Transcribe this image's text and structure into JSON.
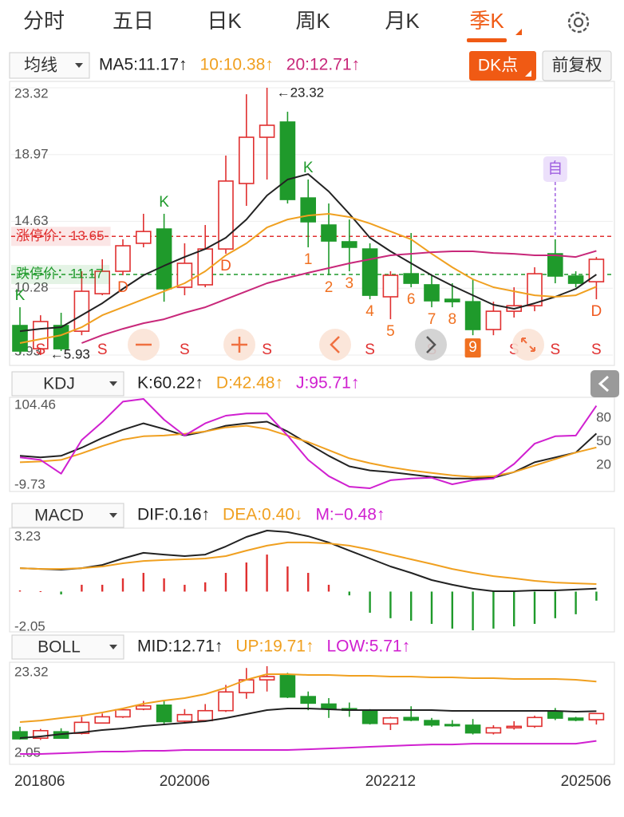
{
  "tabs": [
    "分时",
    "五日",
    "日K",
    "周K",
    "月K",
    "季K"
  ],
  "active_tab": 5,
  "toolbar": {
    "dk_button": "DK点",
    "adjust_button": "前复权"
  },
  "chart_data": [
    {
      "type": "candlestick",
      "selector": "均线",
      "legend": [
        {
          "text": "MA5:11.17↑",
          "color": "#222222"
        },
        {
          "text": "10:10.38↑",
          "color": "#f0a020"
        },
        {
          "text": "20:12.71↑",
          "color": "#c8287a"
        }
      ],
      "open": [
        7.85,
        6.34,
        7.85,
        7.48,
        9.92,
        11.38,
        13.2,
        14.13,
        10.34,
        10.5,
        12.83,
        17.09,
        20.1,
        21.09,
        16.15,
        14.39,
        13.3,
        12.83,
        9.72,
        11.22,
        10.5,
        9.56,
        9.4,
        7.59,
        8.78,
        9.14,
        12.52,
        11.07,
        10.7
      ],
      "high": [
        9.04,
        8.52,
        8.68,
        11.38,
        12.16,
        13.46,
        15.12,
        15.12,
        13.2,
        14.39,
        18.91,
        22.9,
        23.32,
        21.76,
        17.35,
        15.79,
        14.75,
        13.2,
        11.38,
        13.87,
        11.12,
        10.6,
        10.86,
        9.4,
        10.34,
        11.64,
        13.46,
        11.38,
        12.31
      ],
      "low": [
        6.0,
        5.93,
        6.19,
        7.22,
        9.82,
        11.12,
        12.94,
        9.4,
        9.82,
        10.34,
        12.52,
        15.64,
        17.35,
        15.79,
        12.94,
        11.12,
        11.38,
        9.56,
        8.26,
        10.34,
        9.04,
        9.04,
        7.22,
        7.22,
        8.37,
        8.78,
        10.6,
        10.34,
        9.56
      ],
      "close": [
        6.19,
        8.11,
        6.34,
        10.08,
        11.38,
        13.04,
        13.97,
        10.24,
        11.9,
        12.83,
        17.25,
        20.1,
        20.88,
        16.05,
        14.6,
        13.35,
        12.94,
        9.82,
        11.12,
        10.6,
        9.46,
        9.4,
        7.59,
        8.78,
        9.14,
        11.22,
        11.07,
        10.6,
        12.16
      ],
      "up_color": "#e03030",
      "down_color": "#1f9a2b",
      "series": [
        {
          "color": "#222222",
          "values": [
            7.48,
            7.64,
            7.74,
            8.52,
            9.3,
            10.24,
            11.12,
            11.74,
            12.31,
            12.83,
            13.56,
            14.75,
            16.31,
            17.35,
            17.71,
            16.57,
            15.12,
            13.56,
            12.68,
            11.9,
            11.12,
            10.44,
            9.82,
            9.2,
            8.94,
            9.3,
            9.72,
            10.24,
            11.17
          ]
        },
        {
          "color": "#f0a020",
          "values": [
            6.71,
            6.97,
            7.22,
            7.74,
            8.52,
            9.04,
            9.56,
            10.08,
            10.6,
            11.38,
            12.42,
            13.2,
            14.23,
            14.75,
            15.01,
            15.12,
            14.91,
            14.49,
            13.97,
            13.46,
            12.52,
            11.64,
            10.86,
            10.34,
            10.08,
            9.82,
            9.72,
            9.82,
            10.38
          ]
        },
        {
          "color": "#c8287a",
          "values": [
            null,
            null,
            null,
            6.71,
            7.22,
            7.64,
            8.0,
            8.26,
            8.68,
            9.04,
            9.56,
            10.08,
            10.6,
            10.96,
            11.28,
            11.59,
            11.9,
            12.16,
            12.42,
            12.52,
            12.62,
            12.68,
            12.68,
            12.57,
            12.52,
            12.42,
            12.42,
            12.31,
            12.71
          ]
        }
      ],
      "ylim": [
        5.93,
        23.32
      ],
      "yticks": [
        23.32,
        18.97,
        14.63,
        10.28,
        5.93
      ],
      "grid": true,
      "reference_lines": [
        {
          "label": "涨停价：13.65",
          "value": 13.65,
          "color": "#e03030"
        },
        {
          "label": "跌停价：11.17",
          "value": 11.17,
          "color": "#1f9a2b"
        }
      ],
      "extremes": [
        {
          "label": "←23.32",
          "index": 12,
          "at": "high"
        },
        {
          "label": "←5.93",
          "index": 1,
          "at": "low"
        }
      ],
      "annotations": [
        {
          "text": "K",
          "index": 0,
          "pos": "above",
          "color": "#1f9a2b"
        },
        {
          "text": "K",
          "index": 7,
          "pos": "above",
          "color": "#1f9a2b"
        },
        {
          "text": "K",
          "index": 14,
          "pos": "above",
          "color": "#1f9a2b"
        },
        {
          "text": "D",
          "index": 5,
          "pos": "below",
          "color": "#f05a20"
        },
        {
          "text": "D",
          "index": 10,
          "pos": "below",
          "color": "#f05a20"
        },
        {
          "text": "D",
          "index": 28,
          "pos": "below",
          "color": "#f05a20"
        },
        {
          "text": "S",
          "index": 1,
          "pos": "bottom",
          "color": "#e03030"
        },
        {
          "text": "S",
          "index": 4,
          "pos": "bottom",
          "color": "#e03030"
        },
        {
          "text": "S",
          "index": 8,
          "pos": "bottom",
          "color": "#e03030"
        },
        {
          "text": "S",
          "index": 12,
          "pos": "bottom",
          "color": "#e03030"
        },
        {
          "text": "S",
          "index": 17,
          "pos": "bottom",
          "color": "#e03030"
        },
        {
          "text": "S",
          "index": 20,
          "pos": "bottom",
          "color": "#e03030"
        },
        {
          "text": "S",
          "index": 24,
          "pos": "bottom",
          "color": "#e03030"
        },
        {
          "text": "S",
          "index": 26,
          "pos": "bottom",
          "color": "#e03030"
        },
        {
          "text": "S",
          "index": 28,
          "pos": "bottom",
          "color": "#e03030"
        },
        {
          "text": "1",
          "index": 14,
          "pos": "below",
          "color": "#f07020"
        },
        {
          "text": "2",
          "index": 15,
          "pos": "below",
          "color": "#f07020"
        },
        {
          "text": "3",
          "index": 16,
          "pos": "below",
          "color": "#f07020"
        },
        {
          "text": "4",
          "index": 17,
          "pos": "below",
          "color": "#f07020"
        },
        {
          "text": "5",
          "index": 18,
          "pos": "below",
          "color": "#f07020"
        },
        {
          "text": "6",
          "index": 19,
          "pos": "below",
          "color": "#f07020"
        },
        {
          "text": "7",
          "index": 20,
          "pos": "below",
          "color": "#f07020"
        },
        {
          "text": "8",
          "index": 21,
          "pos": "below",
          "color": "#f07020"
        },
        {
          "text": "9",
          "index": 22,
          "pos": "below",
          "color": "#f07020",
          "style": "boxed"
        },
        {
          "text": "自",
          "index": 26,
          "pos": "flag",
          "color": "#a060e0"
        }
      ]
    },
    {
      "type": "kdj",
      "selector": "KDJ",
      "legend": [
        {
          "text": "K:60.22↑",
          "color": "#222222"
        },
        {
          "text": "D:42.48↑",
          "color": "#f0a020"
        },
        {
          "text": "J:95.71↑",
          "color": "#d020d0"
        }
      ],
      "series": [
        {
          "color": "#222222",
          "values": [
            31.8,
            29.7,
            31.8,
            42.2,
            54.6,
            65.0,
            73.3,
            66.0,
            57.7,
            62.9,
            70.2,
            73.3,
            75.4,
            62.9,
            47.3,
            31.8,
            18.3,
            13.1,
            11.0,
            7.9,
            4.8,
            2.7,
            2.7,
            3.7,
            11.0,
            23.5,
            29.7,
            35.9,
            60.22
          ]
        },
        {
          "color": "#f0a020",
          "values": [
            23.5,
            24.5,
            26.6,
            34.9,
            44.2,
            52.5,
            56.7,
            57.7,
            59.8,
            62.9,
            68.1,
            70.2,
            66.0,
            57.7,
            49.4,
            39.0,
            28.6,
            22.4,
            17.2,
            13.1,
            9.9,
            6.8,
            4.8,
            5.8,
            11.0,
            19.3,
            27.6,
            35.9,
            42.48
          ]
        },
        {
          "color": "#d020d0",
          "values": [
            29.7,
            26.6,
            8.9,
            52.0,
            75.0,
            101.0,
            104.46,
            78.0,
            57.7,
            73.3,
            83.0,
            85.8,
            85.8,
            57.7,
            26.6,
            5.8,
            -7.7,
            -9.73,
            0.6,
            2.7,
            3.7,
            -4.6,
            0.6,
            2.7,
            21.4,
            47.3,
            56.7,
            57.7,
            95.71
          ]
        }
      ],
      "ylim": [
        -9.73,
        104.46
      ],
      "yticks": [
        104.46,
        -9.73
      ],
      "y2ticks": [
        80,
        50,
        20
      ]
    },
    {
      "type": "macd",
      "selector": "MACD",
      "legend": [
        {
          "text": "DIF:0.16↑",
          "color": "#222222"
        },
        {
          "text": "DEA:0.40↓",
          "color": "#f0a020"
        },
        {
          "text": "M:−0.48↑",
          "color": "#d020d0"
        }
      ],
      "series": [
        {
          "color": "#222222",
          "values": [
            1.24,
            1.2,
            1.16,
            1.24,
            1.41,
            1.75,
            2.05,
            1.96,
            1.88,
            1.96,
            2.39,
            2.89,
            3.23,
            3.15,
            2.93,
            2.6,
            2.17,
            1.75,
            1.33,
            0.99,
            0.61,
            0.36,
            0.15,
            0.02,
            0.02,
            0.06,
            0.06,
            0.11,
            0.16
          ]
        },
        {
          "color": "#f0a020",
          "values": [
            1.24,
            1.2,
            1.2,
            1.24,
            1.33,
            1.5,
            1.62,
            1.67,
            1.71,
            1.75,
            1.88,
            2.17,
            2.43,
            2.6,
            2.6,
            2.55,
            2.43,
            2.22,
            1.96,
            1.71,
            1.46,
            1.2,
            0.99,
            0.82,
            0.7,
            0.57,
            0.48,
            0.44,
            0.4
          ]
        }
      ],
      "bars": {
        "up_color": "#e03030",
        "down_color": "#1f9a2b",
        "values": [
          0.06,
          0.02,
          -0.15,
          0.36,
          0.36,
          0.7,
          0.99,
          0.7,
          0.36,
          0.49,
          0.99,
          1.54,
          1.96,
          1.33,
          0.99,
          0.36,
          -0.2,
          -1.12,
          -1.41,
          -1.54,
          -1.71,
          -1.96,
          -2.05,
          -1.96,
          -1.84,
          -1.71,
          -1.41,
          -1.2,
          -0.48
        ]
      },
      "ylim": [
        -2.05,
        3.23
      ],
      "yticks": [
        3.23,
        -2.05
      ]
    },
    {
      "type": "boll",
      "selector": "BOLL",
      "legend": [
        {
          "text": "MID:12.71↑",
          "color": "#222222"
        },
        {
          "text": "UP:19.71↑",
          "color": "#f0a020"
        },
        {
          "text": "LOW:5.71↑",
          "color": "#d020d0"
        }
      ],
      "series": [
        {
          "color": "#222222",
          "values": [
            6.37,
            6.75,
            7.31,
            7.69,
            8.26,
            8.63,
            9.2,
            9.57,
            9.95,
            10.33,
            11.08,
            12.02,
            12.96,
            13.34,
            13.34,
            13.15,
            12.96,
            12.96,
            12.96,
            12.96,
            12.96,
            12.77,
            12.77,
            12.77,
            12.77,
            12.77,
            12.77,
            12.59,
            12.71
          ]
        },
        {
          "color": "#f0a020",
          "values": [
            10.14,
            10.51,
            11.08,
            11.64,
            12.4,
            13.34,
            14.47,
            15.22,
            15.79,
            16.73,
            18.24,
            20.12,
            21.44,
            21.44,
            21.25,
            21.25,
            21.06,
            21.06,
            20.87,
            20.87,
            20.68,
            20.68,
            20.5,
            20.5,
            20.31,
            20.31,
            20.31,
            20.12,
            19.71
          ]
        },
        {
          "color": "#d020d0",
          "values": [
            2.61,
            2.61,
            2.79,
            2.98,
            3.17,
            3.17,
            3.36,
            3.36,
            3.55,
            3.55,
            3.55,
            3.55,
            3.55,
            3.55,
            3.73,
            3.92,
            4.11,
            4.3,
            4.49,
            4.68,
            4.86,
            4.86,
            5.05,
            5.05,
            5.05,
            5.05,
            5.05,
            5.05,
            5.71
          ]
        }
      ],
      "ylim": [
        2.05,
        23.32
      ],
      "yticks": [
        23.32,
        2.05
      ],
      "categories": [
        "201806",
        null,
        null,
        null,
        null,
        null,
        null,
        null,
        "202006",
        null,
        null,
        null,
        null,
        null,
        null,
        null,
        null,
        null,
        "202212",
        null,
        null,
        null,
        null,
        null,
        null,
        null,
        null,
        null,
        "202506"
      ]
    }
  ]
}
